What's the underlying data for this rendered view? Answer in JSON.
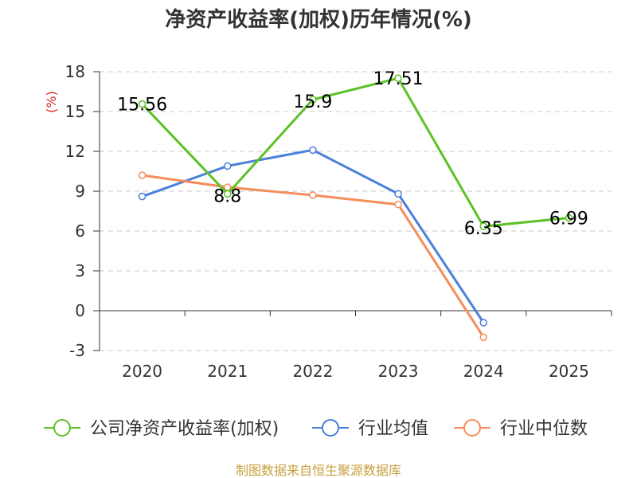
{
  "chart_data": {
    "type": "line",
    "title": "净资产收益率(加权)历年情况(%)",
    "ylabel": "(%)",
    "xlabel": "",
    "categories": [
      "2020",
      "2021",
      "2022",
      "2023",
      "2024",
      "2025"
    ],
    "ylim": [
      -3,
      18
    ],
    "yticks": [
      18,
      15,
      12,
      9,
      6,
      3,
      0,
      -3
    ],
    "grid": true,
    "series": [
      {
        "name": "公司净资产收益率(加权)",
        "color": "#5cc227",
        "values": [
          15.56,
          8.8,
          15.9,
          17.51,
          6.35,
          6.99
        ],
        "labels": [
          "15.56",
          "8.8",
          "15.9",
          "17.51",
          "6.35",
          "6.99"
        ]
      },
      {
        "name": "行业均值",
        "color": "#4a7fdb",
        "values": [
          8.6,
          10.9,
          12.1,
          8.8,
          -0.9,
          null
        ]
      },
      {
        "name": "行业中位数",
        "color": "#f58d5b",
        "values": [
          10.2,
          9.3,
          8.7,
          8.0,
          -2.0,
          null
        ]
      }
    ],
    "legend_position": "bottom",
    "source": "制图数据来自恒生聚源数据库"
  }
}
